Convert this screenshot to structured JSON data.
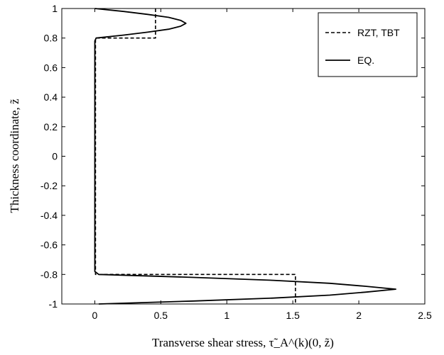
{
  "chart_data": {
    "type": "line",
    "xlabel": "Transverse shear stress, τ̃_A^(k)(0, z̃)",
    "ylabel": "Thickness coordinate, z̃",
    "xlim": [
      -0.25,
      2.5
    ],
    "ylim": [
      -1,
      1
    ],
    "x_ticks": [
      "0",
      "0.5",
      "1",
      "1.5",
      "2",
      "2.5"
    ],
    "x_tick_values": [
      0,
      0.5,
      1,
      1.5,
      2,
      2.5
    ],
    "y_ticks": [
      "1",
      "0.8",
      "0.6",
      "0.4",
      "0.2",
      "0",
      "-0.2",
      "-0.4",
      "-0.6",
      "-0.8",
      "-1"
    ],
    "y_tick_values": [
      1,
      0.8,
      0.6,
      0.4,
      0.2,
      0,
      -0.2,
      -0.4,
      -0.6,
      -0.8,
      -1
    ],
    "grid": false,
    "legend_position": "top-right",
    "series": [
      {
        "name": "RZT, TBT",
        "style": "dashed",
        "color": "#000000",
        "points": [
          [
            0.46,
            1.0
          ],
          [
            0.46,
            0.8
          ],
          [
            0.005,
            0.8
          ],
          [
            0.005,
            -0.8
          ],
          [
            1.52,
            -0.8
          ],
          [
            1.52,
            -1.0
          ]
        ]
      },
      {
        "name": "EQ.",
        "style": "solid",
        "color": "#000000",
        "points": [
          [
            0.0,
            1.0
          ],
          [
            0.22,
            0.98
          ],
          [
            0.4,
            0.96
          ],
          [
            0.56,
            0.94
          ],
          [
            0.65,
            0.92
          ],
          [
            0.69,
            0.9
          ],
          [
            0.65,
            0.88
          ],
          [
            0.56,
            0.86
          ],
          [
            0.4,
            0.84
          ],
          [
            0.22,
            0.82
          ],
          [
            0.01,
            0.8
          ],
          [
            0.0,
            0.78
          ],
          [
            0.0,
            -0.78
          ],
          [
            0.03,
            -0.8
          ],
          [
            0.75,
            -0.82
          ],
          [
            1.35,
            -0.84
          ],
          [
            1.78,
            -0.86
          ],
          [
            2.05,
            -0.88
          ],
          [
            2.28,
            -0.9
          ],
          [
            2.05,
            -0.92
          ],
          [
            1.78,
            -0.94
          ],
          [
            1.35,
            -0.96
          ],
          [
            0.75,
            -0.98
          ],
          [
            0.03,
            -1.0
          ]
        ]
      }
    ]
  }
}
